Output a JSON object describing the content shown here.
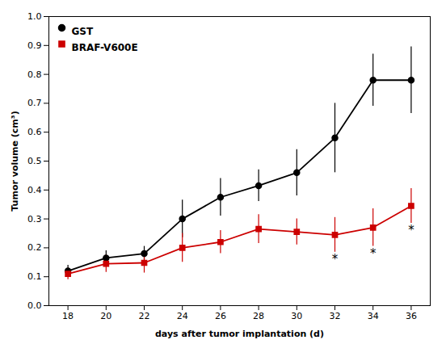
{
  "chart_data": {
    "type": "line",
    "xlabel": "days after tumor implantation (d)",
    "ylabel": "Tumor volume (cm³)",
    "x": [
      18,
      20,
      22,
      24,
      26,
      28,
      30,
      32,
      34,
      36
    ],
    "series": [
      {
        "name": "GST",
        "color": "#000000",
        "marker": "circle",
        "values": [
          0.12,
          0.165,
          0.18,
          0.3,
          0.375,
          0.415,
          0.46,
          0.58,
          0.78,
          0.78
        ],
        "yerr": [
          0.02,
          0.025,
          0.025,
          0.065,
          0.065,
          0.055,
          0.08,
          0.12,
          0.09,
          0.115
        ]
      },
      {
        "name": "BRAF-V600E",
        "color": "#cc0000",
        "marker": "square",
        "values": [
          0.11,
          0.145,
          0.148,
          0.2,
          0.22,
          0.265,
          0.255,
          0.245,
          0.27,
          0.345
        ],
        "yerr": [
          0.02,
          0.03,
          0.035,
          0.05,
          0.04,
          0.05,
          0.045,
          0.06,
          0.065,
          0.06
        ]
      }
    ],
    "annotations": [
      {
        "x": 32,
        "text": "*",
        "series": "BRAF-V600E"
      },
      {
        "x": 34,
        "text": "*",
        "series": "BRAF-V600E"
      },
      {
        "x": 36,
        "text": "*",
        "series": "BRAF-V600E"
      }
    ],
    "xlim": [
      17,
      37
    ],
    "xticks": [
      18,
      20,
      22,
      24,
      26,
      28,
      30,
      32,
      34,
      36
    ],
    "ylim": [
      0,
      1
    ],
    "yticks": [
      {
        "value": 0,
        "label": "0.0"
      },
      0.1,
      0.2,
      0.3,
      0.4,
      0.5,
      0.6,
      0.7,
      0.8,
      0.9,
      {
        "value": 1,
        "label": "1.0"
      }
    ],
    "legend": "upper left",
    "grid": false
  }
}
